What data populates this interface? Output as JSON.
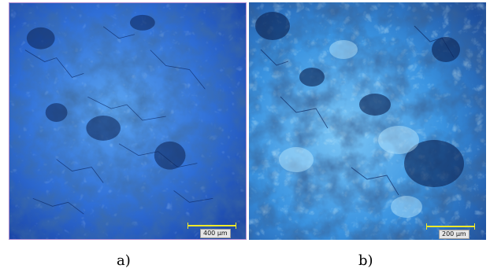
{
  "panels": [
    {
      "caption": "a)",
      "scale_label": "400 µm"
    },
    {
      "caption": "b)",
      "scale_label": "200 µm"
    }
  ],
  "colors": {
    "scale_bar": "#f2ea2a",
    "panel_a_base": "#2f6ed6",
    "panel_b_base": "#3a93e0"
  }
}
